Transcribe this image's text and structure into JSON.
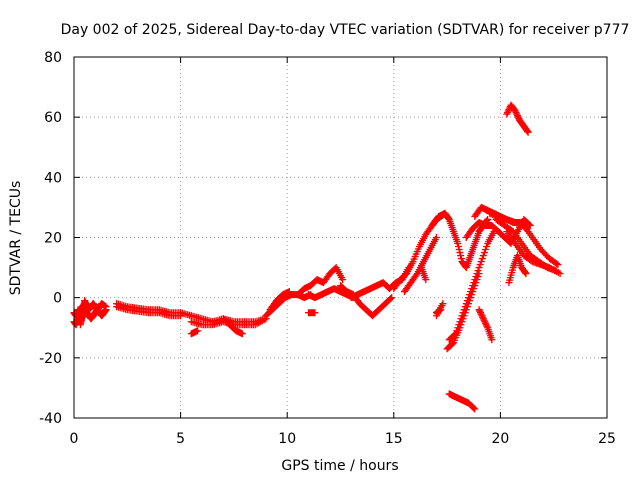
{
  "chart_data": {
    "type": "scatter",
    "title": "Day 002 of 2025, Sidereal Day-to-day VTEC variation (SDTVAR) for receiver p777",
    "xlabel": "GPS time / hours",
    "ylabel": "SDTVAR / TECUs",
    "xlim": [
      0,
      25
    ],
    "ylim": [
      -40,
      80
    ],
    "xticks": [
      0,
      5,
      10,
      15,
      20,
      25
    ],
    "yticks": [
      -40,
      -20,
      0,
      20,
      40,
      60,
      80
    ],
    "grid": true,
    "marker": "+",
    "color": "#ff0000",
    "series": [
      {
        "name": "seg1",
        "x": [
          0.0,
          0.1,
          0.2,
          0.3,
          0.4,
          0.5,
          0.6,
          0.7,
          0.8,
          0.9,
          1.0,
          1.1,
          1.2,
          1.3,
          1.4,
          1.5
        ],
        "y": [
          -8,
          -9,
          -7,
          -8,
          -6,
          -4,
          -5,
          -6,
          -7,
          -6,
          -5,
          -4,
          -5,
          -6,
          -5,
          -4
        ]
      },
      {
        "name": "seg2",
        "x": [
          0.0,
          0.1,
          0.2,
          0.3,
          0.4,
          0.5,
          0.6,
          0.7,
          0.8,
          0.9,
          1.0,
          1.1,
          1.2,
          1.3,
          1.5
        ],
        "y": [
          -5,
          -6,
          -4,
          -5,
          -3,
          -2,
          -3,
          -4,
          -3,
          -2,
          -3,
          -4,
          -3,
          -2,
          -3
        ]
      },
      {
        "name": "seg3",
        "x": [
          0.3,
          0.4,
          0.5,
          0.6
        ],
        "y": [
          -9,
          -6,
          -1,
          -3
        ]
      },
      {
        "name": "seg4",
        "x": [
          2.0,
          2.5,
          3.0,
          3.5,
          4.0,
          4.5,
          5.0,
          5.5
        ],
        "y": [
          -2,
          -3,
          -3.5,
          -4,
          -4,
          -5,
          -5,
          -6
        ]
      },
      {
        "name": "seg5",
        "x": [
          2.0,
          2.5,
          3.0,
          3.5,
          4.0,
          4.5,
          5.0
        ],
        "y": [
          -3,
          -4,
          -4.5,
          -5,
          -5,
          -6,
          -6
        ]
      },
      {
        "name": "seg6",
        "x": [
          5.5,
          6.0,
          6.5,
          7.0,
          7.5,
          8.0,
          8.5,
          9.0
        ],
        "y": [
          -6,
          -7,
          -8,
          -7,
          -8,
          -8,
          -8,
          -7
        ]
      },
      {
        "name": "seg7",
        "x": [
          5.5,
          6.0,
          6.5,
          7.0,
          7.5,
          8.0,
          8.5,
          9.0
        ],
        "y": [
          -8,
          -9,
          -9,
          -8,
          -9,
          -9,
          -9,
          -7
        ]
      },
      {
        "name": "seg8",
        "x": [
          7.0,
          7.3,
          7.6,
          7.9
        ],
        "y": [
          -7,
          -9,
          -11,
          -12
        ]
      },
      {
        "name": "seg9",
        "x": [
          5.5,
          5.8
        ],
        "y": [
          -12,
          -11
        ]
      },
      {
        "name": "seg10",
        "x": [
          9.0,
          9.3,
          9.6,
          9.9,
          10.2,
          10.5,
          10.8,
          11.1
        ],
        "y": [
          -6,
          -4,
          -2,
          0,
          1,
          1,
          0,
          1
        ]
      },
      {
        "name": "seg11",
        "x": [
          9.2,
          9.5,
          9.8,
          10.1
        ],
        "y": [
          -4,
          -1,
          1,
          2
        ]
      },
      {
        "name": "seg12",
        "x": [
          10.5,
          10.8,
          11.1,
          11.4,
          11.7,
          12.0,
          12.3,
          12.6
        ],
        "y": [
          1,
          3,
          4,
          6,
          5,
          8,
          10,
          6
        ]
      },
      {
        "name": "seg13",
        "x": [
          11.0,
          11.3,
          11.6,
          11.9,
          12.2,
          12.5,
          12.8,
          13.1
        ],
        "y": [
          1,
          0,
          1,
          2,
          3,
          2,
          1,
          0
        ]
      },
      {
        "name": "seg14",
        "x": [
          12.5,
          12.8,
          13.1,
          13.4,
          13.7,
          14.0,
          14.3,
          14.6,
          14.9
        ],
        "y": [
          4,
          2,
          1,
          -2,
          -4,
          -6,
          -4,
          -2,
          0
        ]
      },
      {
        "name": "seg15",
        "x": [
          11.0,
          11.3
        ],
        "y": [
          -5,
          -5
        ]
      },
      {
        "name": "seg16",
        "x": [
          13.0,
          13.3,
          13.6,
          13.9,
          14.2,
          14.5,
          14.8,
          15.1,
          15.4,
          15.7
        ],
        "y": [
          0,
          1,
          2,
          3,
          4,
          5,
          3,
          5,
          6,
          10
        ]
      },
      {
        "name": "seg17",
        "x": [
          15.0,
          15.3,
          15.6,
          15.9,
          16.2,
          16.5,
          16.8,
          17.1,
          17.4
        ],
        "y": [
          3,
          6,
          8,
          12,
          17,
          21,
          24,
          27,
          28
        ]
      },
      {
        "name": "seg18",
        "x": [
          15.5,
          15.8,
          16.1,
          16.4,
          16.7,
          17.0
        ],
        "y": [
          2,
          5,
          8,
          12,
          16,
          20
        ]
      },
      {
        "name": "seg19",
        "x": [
          16.8,
          17.0,
          17.2,
          17.4,
          17.6,
          17.8,
          18.0,
          18.2,
          18.4,
          18.6,
          18.8,
          19.0,
          19.2,
          19.4
        ],
        "y": [
          24,
          26,
          27,
          28,
          26,
          22,
          18,
          12,
          10,
          14,
          18,
          22,
          24,
          26
        ]
      },
      {
        "name": "seg20",
        "x": [
          17.5,
          17.8,
          18.1,
          18.4,
          18.7,
          19.0
        ],
        "y": [
          -17,
          -15,
          -10,
          -4,
          2,
          8
        ]
      },
      {
        "name": "seg21",
        "x": [
          17.6,
          17.9,
          18.2,
          18.5,
          18.8,
          19.1,
          19.4,
          19.7
        ],
        "y": [
          -14,
          -12,
          -6,
          0,
          6,
          12,
          18,
          22
        ]
      },
      {
        "name": "seg22",
        "x": [
          18.4,
          18.7,
          19.0,
          19.3,
          19.6,
          19.9,
          20.2,
          20.5,
          20.8,
          21.1,
          21.4
        ],
        "y": [
          20,
          23,
          25,
          24,
          24,
          22,
          20,
          18,
          22,
          26,
          24
        ]
      },
      {
        "name": "seg23",
        "x": [
          18.8,
          19.1,
          19.4,
          19.7,
          20.0,
          20.3,
          20.6,
          20.9,
          21.2
        ],
        "y": [
          27,
          30,
          29,
          28,
          27,
          26,
          25,
          25,
          23
        ]
      },
      {
        "name": "seg24",
        "x": [
          19.5,
          19.9,
          20.3,
          20.7,
          21.1,
          21.5,
          21.9,
          22.3,
          22.7
        ],
        "y": [
          28,
          27,
          26,
          25,
          24,
          20,
          16,
          13,
          11
        ]
      },
      {
        "name": "seg25",
        "x": [
          19.8,
          20.2,
          20.6,
          21.0,
          21.4,
          21.8,
          22.2,
          22.6
        ],
        "y": [
          26,
          24,
          22,
          18,
          14,
          12,
          10,
          9
        ]
      },
      {
        "name": "seg26",
        "x": [
          20.3,
          20.7,
          21.1,
          21.5,
          21.9,
          22.3,
          22.8
        ],
        "y": [
          22,
          18,
          14,
          12,
          11,
          10,
          8
        ]
      },
      {
        "name": "seg27",
        "x": [
          20.4,
          20.6,
          20.8,
          21.0,
          21.2
        ],
        "y": [
          5,
          10,
          14,
          10,
          8
        ]
      },
      {
        "name": "seg28",
        "x": [
          20.3,
          20.5,
          20.7,
          20.9,
          21.1,
          21.3
        ],
        "y": [
          61,
          64,
          62,
          59,
          57,
          55
        ]
      },
      {
        "name": "seg29",
        "x": [
          17.0,
          17.3
        ],
        "y": [
          -6,
          -2
        ]
      },
      {
        "name": "seg30",
        "x": [
          17.0,
          17.2
        ],
        "y": [
          -5,
          -4
        ]
      },
      {
        "name": "seg31",
        "x": [
          19.0,
          19.2,
          19.4,
          19.6
        ],
        "y": [
          -4,
          -7,
          -10,
          -14
        ]
      },
      {
        "name": "seg32",
        "x": [
          17.6,
          17.9,
          18.2,
          18.5,
          18.8
        ],
        "y": [
          -32,
          -33,
          -34,
          -35,
          -37
        ]
      },
      {
        "name": "seg33",
        "x": [
          16.3,
          16.5
        ],
        "y": [
          10,
          6
        ]
      }
    ]
  }
}
